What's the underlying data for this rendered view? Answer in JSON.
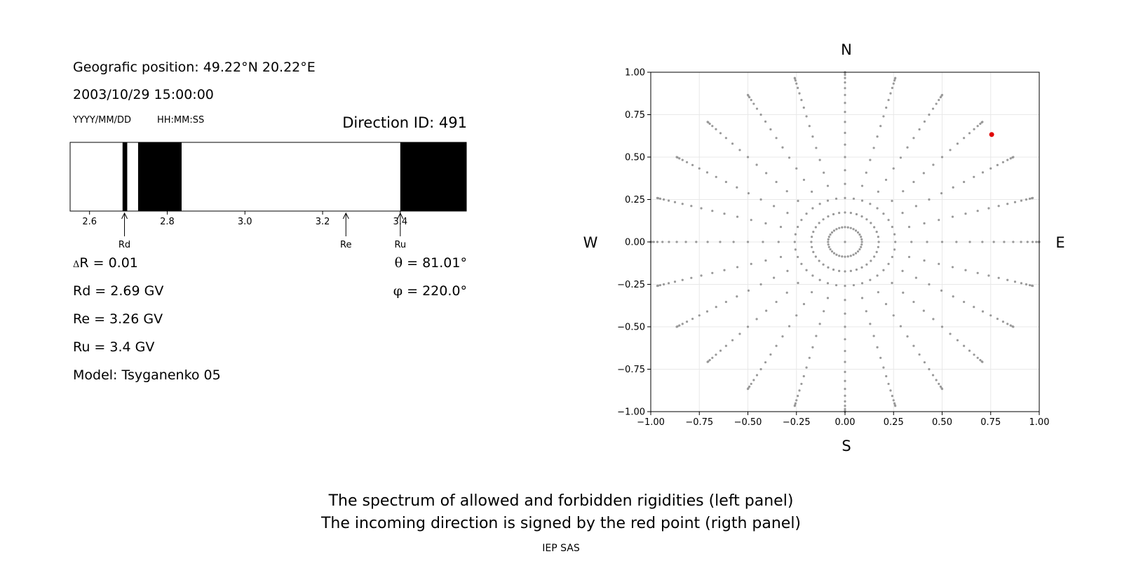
{
  "info": {
    "position": "Geografic position: 49.22°N 20.22°E",
    "datetime": "2003/10/29 15:00:00",
    "date_format": "YYYY/MM/DD",
    "time_format": "HH:MM:SS",
    "direction_id": "Direction ID: 491",
    "delta_r_symbol": "Δ",
    "delta_r": "R = 0.01",
    "rd": "Rd = 2.69 GV",
    "re": "Re = 3.26 GV",
    "ru": "Ru = 3.4 GV",
    "model": "Model: Tsyganenko 05",
    "theta_symbol": "θ",
    "theta": " = 81.01°",
    "phi_symbol": "φ",
    "phi": " = 220.0°"
  },
  "footer": {
    "line1": "The spectrum of allowed and forbidden rigidities (left panel)",
    "line2": "The incoming direction is signed by the red point (rigth panel)",
    "credit": "IEP SAS"
  },
  "chart_data": [
    {
      "type": "spectrum",
      "xlim": [
        2.55,
        3.57
      ],
      "ticks": [
        2.6,
        2.8,
        3.0,
        3.2,
        3.4
      ],
      "tick_labels": [
        "2.6",
        "2.8",
        "3.0",
        "3.2",
        "3.4"
      ],
      "forbidden_bands": [
        [
          2.685,
          2.697
        ],
        [
          2.725,
          2.837
        ],
        [
          3.4,
          3.57
        ]
      ],
      "markers": [
        {
          "label": "Rd",
          "value": 2.69
        },
        {
          "label": "Re",
          "value": 3.26
        },
        {
          "label": "Ru",
          "value": 3.4
        }
      ],
      "band_color": "#000000"
    },
    {
      "type": "scatter",
      "xlim": [
        -1.0,
        1.0
      ],
      "ylim": [
        -1.0,
        1.0
      ],
      "ticks": [
        -1.0,
        -0.75,
        -0.5,
        -0.25,
        0.0,
        0.25,
        0.5,
        0.75,
        1.0
      ],
      "x_tick_labels": [
        "−1.00",
        "−0.75",
        "−0.50",
        "−0.25",
        "0.00",
        "0.25",
        "0.50",
        "0.75",
        "1.00"
      ],
      "y_tick_labels": [
        "−1.00",
        "−0.75",
        "−0.50",
        "−0.25",
        "0.00",
        "0.25",
        "0.50",
        "0.75",
        "1.00"
      ],
      "grid": true,
      "directions": {
        "north": "N",
        "south": "S",
        "west": "W",
        "east": "E"
      },
      "grid_points": {
        "zenith_step_deg": 5,
        "zenith_max_deg": 90,
        "inner_ring_zenith_deg": 15,
        "inner_ring_azimuth_step_deg": 10,
        "outer_azimuth_step_deg": 15,
        "color": "#999999"
      },
      "highlight_point": {
        "x": 0.755,
        "y": 0.633,
        "color": "#e00000"
      }
    }
  ]
}
